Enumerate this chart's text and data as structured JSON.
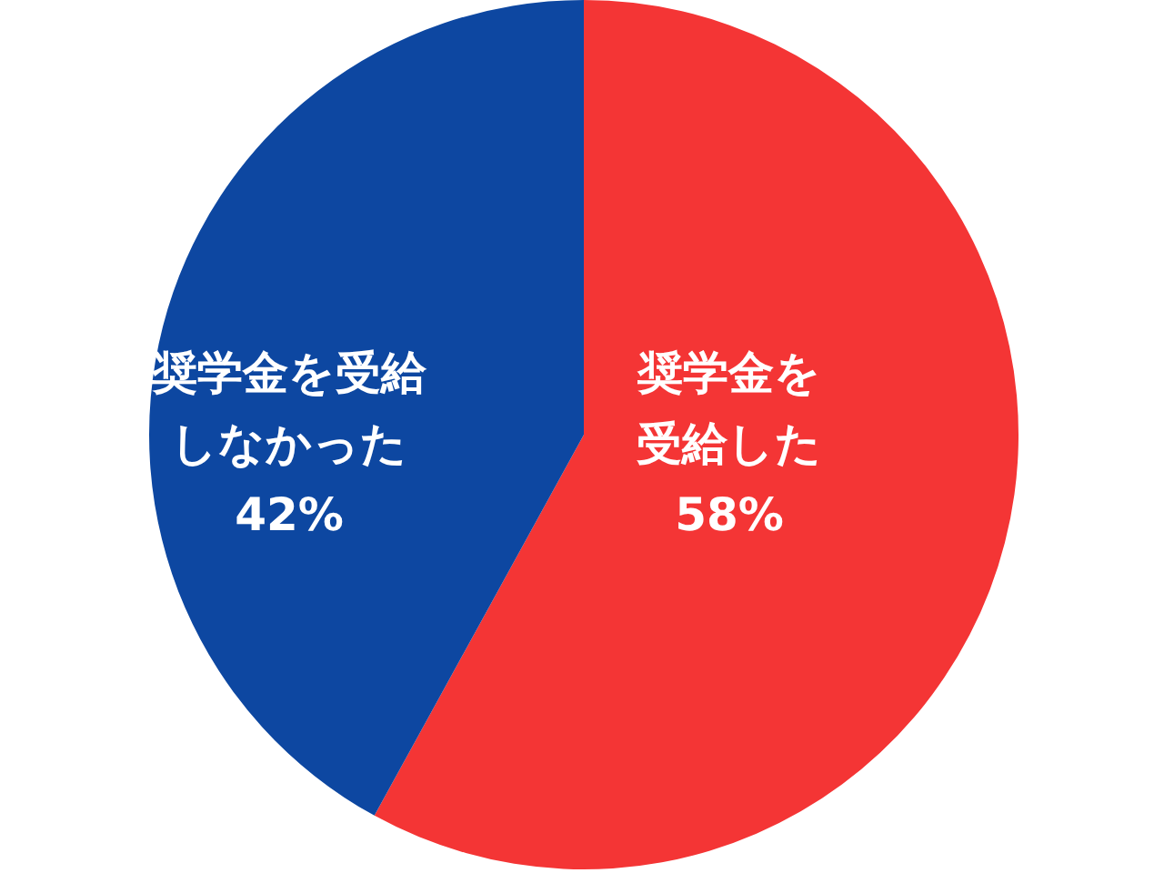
{
  "chart_data": {
    "type": "pie",
    "categories": [
      "奨学金を受給した",
      "奨学金を受給しなかった"
    ],
    "values": [
      58,
      42
    ],
    "colors": [
      "#f43535",
      "#0d47a1"
    ],
    "value_labels": [
      "58%",
      "42%"
    ]
  }
}
